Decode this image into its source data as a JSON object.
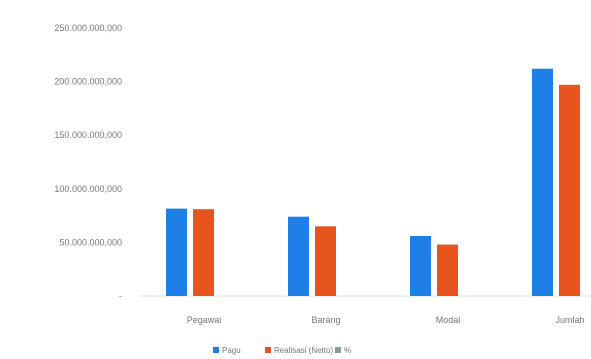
{
  "chart_data": {
    "type": "bar",
    "title": "",
    "categories": [
      "Pegawai",
      "Barang",
      "Modal",
      "Jumlah"
    ],
    "series": [
      {
        "name": "Pagu",
        "color": "#1e7fe6",
        "values": [
          81500000,
          74000000,
          56000000,
          212000000
        ]
      },
      {
        "name": "Realisasi (Netto)",
        "color": "#e8541e",
        "values": [
          81000000,
          65000000,
          48000000,
          197000000
        ]
      },
      {
        "name": "%",
        "color": "#8a9a9a",
        "values": [
          0,
          0,
          0,
          0
        ]
      }
    ],
    "yticks": [
      "-",
      "50.000.000,000",
      "100.000.000,000",
      "150.000.000,000",
      "200.000.000,000",
      "250.000.000,000"
    ],
    "ylim": [
      0,
      250000000
    ],
    "legend_position": "bottom"
  }
}
